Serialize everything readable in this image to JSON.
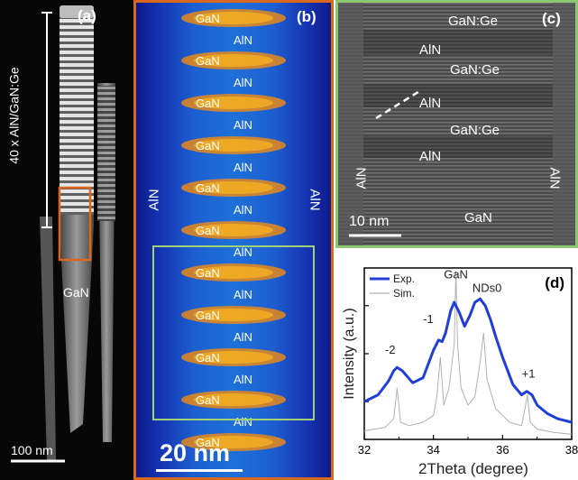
{
  "panel_a": {
    "letter": "(a)",
    "vertical_label": "40 x AlN/GaN:Ge",
    "gan_label": "GaN",
    "scalebar": "100 nm",
    "box_color": "#d9671d"
  },
  "panel_b": {
    "letter": "(b)",
    "scalebar": "20 nm",
    "side_left": "AlN",
    "side_right": "AlN",
    "layer_labels": [
      "GaN",
      "AlN",
      "GaN",
      "AlN",
      "GaN",
      "AlN",
      "GaN",
      "AlN",
      "GaN",
      "AlN",
      "GaN",
      "AlN",
      "GaN",
      "AlN",
      "GaN",
      "AlN",
      "GaN",
      "AlN",
      "GaN",
      "AlN",
      "GaN"
    ],
    "border_color": "#d9671d",
    "inset_box_color": "#a3cf7a"
  },
  "panel_c": {
    "letter": "(c)",
    "labels": [
      "GaN:Ge",
      "AlN",
      "GaN:Ge",
      "AlN",
      "GaN:Ge",
      "AlN"
    ],
    "side_left": "AlN",
    "side_right": "AlN",
    "bottom_label": "GaN",
    "scalebar": "10 nm",
    "border_color": "#8cc870"
  },
  "chart_data": {
    "type": "line",
    "letter": "(d)",
    "xlabel": "2Theta (degree)",
    "ylabel": "Intensity (a.u.)",
    "xlim": [
      32,
      38
    ],
    "xticks": [
      "32",
      "34",
      "36",
      "38"
    ],
    "ylog": true,
    "legend_position": "top-left",
    "series": [
      {
        "name": "Exp.",
        "color": "#1f3fd8",
        "x": [
          32.0,
          32.4,
          32.7,
          32.85,
          32.95,
          33.1,
          33.4,
          33.7,
          34.0,
          34.15,
          34.25,
          34.35,
          34.5,
          34.6,
          34.75,
          34.9,
          35.05,
          35.2,
          35.35,
          35.5,
          35.65,
          35.8,
          36.0,
          36.3,
          36.55,
          36.7,
          36.85,
          37.0,
          37.3,
          37.6,
          38.0
        ],
        "y": [
          0.22,
          0.26,
          0.34,
          0.4,
          0.42,
          0.4,
          0.33,
          0.36,
          0.52,
          0.58,
          0.57,
          0.62,
          0.75,
          0.8,
          0.74,
          0.66,
          0.72,
          0.8,
          0.82,
          0.78,
          0.7,
          0.6,
          0.48,
          0.32,
          0.26,
          0.28,
          0.26,
          0.2,
          0.15,
          0.12,
          0.1
        ]
      },
      {
        "name": "Sim.",
        "color": "#b0b0b0",
        "x": [
          32.0,
          32.6,
          32.85,
          32.95,
          33.05,
          33.3,
          33.7,
          34.0,
          34.1,
          34.2,
          34.3,
          34.45,
          34.6,
          34.65,
          34.7,
          34.8,
          35.0,
          35.2,
          35.35,
          35.45,
          35.55,
          35.8,
          36.2,
          36.55,
          36.65,
          36.72,
          36.8,
          37.0,
          37.5,
          38.0
        ],
        "y": [
          0.05,
          0.07,
          0.12,
          0.3,
          0.1,
          0.08,
          0.1,
          0.14,
          0.25,
          0.48,
          0.2,
          0.3,
          0.55,
          0.98,
          0.55,
          0.3,
          0.2,
          0.25,
          0.45,
          0.62,
          0.35,
          0.18,
          0.1,
          0.08,
          0.18,
          0.26,
          0.1,
          0.06,
          0.04,
          0.03
        ]
      }
    ],
    "annotations": [
      {
        "text": "GaN",
        "x": 34.65,
        "y": 0.94
      },
      {
        "text": "NDs0",
        "x": 35.55,
        "y": 0.86
      },
      {
        "text": "-1",
        "x": 33.85,
        "y": 0.68
      },
      {
        "text": "-2",
        "x": 32.75,
        "y": 0.5
      },
      {
        "text": "+1",
        "x": 36.75,
        "y": 0.36
      }
    ]
  }
}
